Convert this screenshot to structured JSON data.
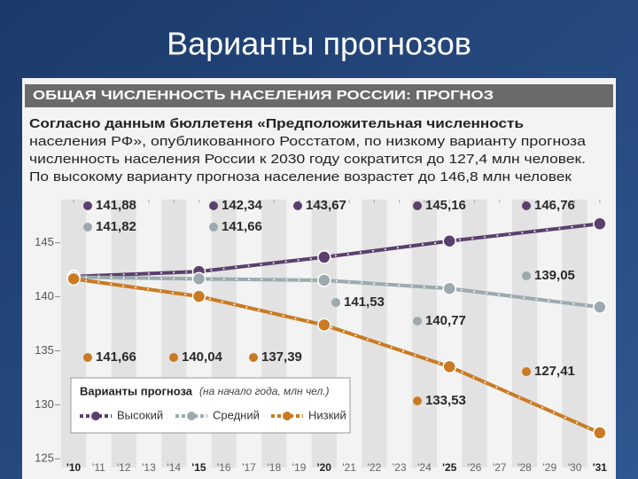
{
  "slide_title": "Варианты прогнозов",
  "chart_data": {
    "type": "line",
    "title": "ОБЩАЯ ЧИСЛЕННОСТЬ НАСЕЛЕНИЯ РОССИИ: ПРОГНОЗ",
    "subtitle": [
      "Согласно данным бюллетеня «Предположительная численность",
      "населения РФ», опубликованного Росстатом, по низкому варианту прогноза",
      "численность населения России к 2030 году сократится до 127,4 млн человек.",
      "По высокому варианту прогноза население возрастет до 146,8 млн человек"
    ],
    "x": [
      2010,
      2015,
      2020,
      2025,
      2031
    ],
    "series": [
      {
        "name": "Высокий",
        "color": "#5b3f6c",
        "values": [
          141.88,
          142.34,
          143.67,
          145.16,
          146.76
        ],
        "value_labels": [
          "141,88",
          "142,34",
          "143,67",
          "145,16",
          "146,76"
        ]
      },
      {
        "name": "Средний",
        "color": "#9caab0",
        "values": [
          141.82,
          141.66,
          141.53,
          140.77,
          139.05
        ],
        "value_labels": [
          "141,82",
          "141,66",
          "141,53",
          "140,77",
          "139,05"
        ]
      },
      {
        "name": "Низкий",
        "color": "#c97a22",
        "values": [
          141.66,
          140.04,
          137.39,
          133.53,
          127.41
        ],
        "value_labels": [
          "141,66",
          "140,04",
          "137,39",
          "133,53",
          "127,41"
        ]
      }
    ],
    "legend_title": "Варианты прогноза",
    "legend_note": "(на начало года, млн чел.)",
    "legend_position": "lower left",
    "xlim": [
      2009.5,
      2031.5
    ],
    "xticks": [
      {
        "value": 2010,
        "label": "'10"
      },
      {
        "value": 2011,
        "label": "'11"
      },
      {
        "value": 2012,
        "label": "'12"
      },
      {
        "value": 2013,
        "label": "'13"
      },
      {
        "value": 2014,
        "label": "'14"
      },
      {
        "value": 2015,
        "label": "'15"
      },
      {
        "value": 2016,
        "label": "'16"
      },
      {
        "value": 2017,
        "label": "'17"
      },
      {
        "value": 2018,
        "label": "'18"
      },
      {
        "value": 2019,
        "label": "'19"
      },
      {
        "value": 2020,
        "label": "'20"
      },
      {
        "value": 2021,
        "label": "'21"
      },
      {
        "value": 2022,
        "label": "'22"
      },
      {
        "value": 2023,
        "label": "'23"
      },
      {
        "value": 2024,
        "label": "'24"
      },
      {
        "value": 2025,
        "label": "'25"
      },
      {
        "value": 2026,
        "label": "'26"
      },
      {
        "value": 2027,
        "label": "'27"
      },
      {
        "value": 2028,
        "label": "'28"
      },
      {
        "value": 2029,
        "label": "'29"
      },
      {
        "value": 2030,
        "label": "'30"
      },
      {
        "value": 2031,
        "label": "'31"
      }
    ],
    "ylim": [
      124.2,
      149
    ],
    "yticks": [
      125,
      130,
      135,
      140,
      145
    ],
    "grid": false
  }
}
